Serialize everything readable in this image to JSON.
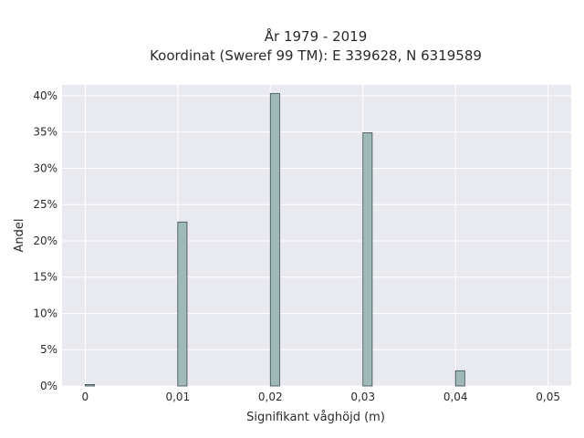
{
  "chart_data": {
    "type": "bar",
    "title_lines": [
      "År 1979 - 2019",
      "Koordinat (Sweref 99 TM): E 339628, N 6319589"
    ],
    "xlabel": "Signifikant våghöjd (m)",
    "ylabel": "Andel",
    "x": [
      0.0,
      0.01,
      0.02,
      0.03,
      0.04
    ],
    "values": [
      0.2,
      22.6,
      40.3,
      34.9,
      2.1
    ],
    "x_ticks": [
      0,
      0.01,
      0.02,
      0.03,
      0.04,
      0.05
    ],
    "x_tick_labels": [
      "0",
      "0,01",
      "0,02",
      "0,03",
      "0,04",
      "0,05"
    ],
    "y_ticks": [
      0,
      5,
      10,
      15,
      20,
      25,
      30,
      35,
      40
    ],
    "y_tick_labels": [
      "0%",
      "5%",
      "10%",
      "15%",
      "20%",
      "25%",
      "30%",
      "35%",
      "40%"
    ],
    "xlim": [
      -0.0025,
      0.0525
    ],
    "ylim": [
      0,
      41.5
    ],
    "bar_width": 0.001,
    "grid": true,
    "colors": {
      "bar_fill": "#9fb8b8",
      "bar_stroke": "#3b4b4b",
      "plot_background": "#e9e9f0",
      "grid": "#ffffff"
    }
  }
}
